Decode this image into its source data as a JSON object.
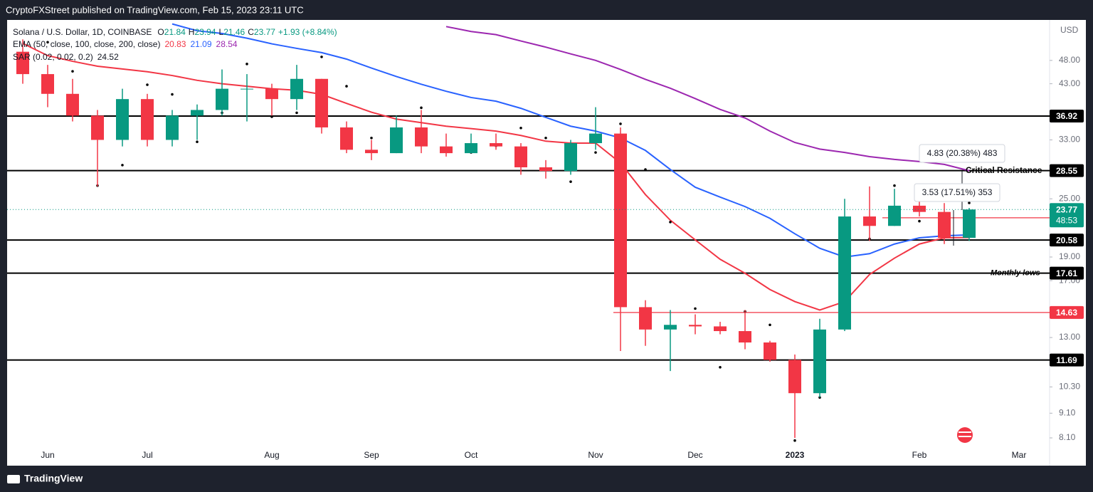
{
  "header": {
    "publisher": "CryptoFXStreet published on TradingView.com, Feb 15, 2023 23:11 UTC"
  },
  "footer": {
    "brand": "TradingView"
  },
  "chart_data": {
    "type": "candlestick",
    "currency": "USD",
    "log_scale": true,
    "grid": false,
    "up_color": "#089981",
    "down_color": "#f23645",
    "legend": {
      "symbol": "Solana / U.S. Dollar, 1D, COINBASE",
      "day": [
        {
          "key": "O",
          "value": "21.84"
        },
        {
          "key": "H",
          "value": "23.94"
        },
        {
          "key": "L",
          "value": "21.46"
        },
        {
          "key": "C",
          "value": "23.77"
        }
      ],
      "change": "+1.93 (+8.84%)",
      "ema": "EMA (50, close, 100, close, 200, close)",
      "sar": "SAR (0.02, 0.02, 0.2)"
    },
    "categories": [
      null,
      "Jun",
      null,
      null,
      null,
      "Jul",
      null,
      null,
      null,
      null,
      "Aug",
      null,
      null,
      null,
      "Sep",
      null,
      null,
      null,
      "Oct",
      null,
      null,
      null,
      null,
      "Nov",
      null,
      null,
      null,
      "Dec",
      null,
      null,
      null,
      "2023",
      null,
      null,
      null,
      null,
      "Feb",
      null,
      null,
      null,
      "Mar"
    ],
    "open": [
      50,
      45,
      41,
      37,
      33,
      40,
      33,
      37,
      38,
      42,
      42,
      40,
      44,
      35,
      31.5,
      31,
      35,
      32,
      31,
      32.5,
      32,
      29,
      28.5,
      32.5,
      34,
      15,
      13.5,
      13.8,
      13.7,
      13.4,
      12.7,
      11.7,
      10,
      13.5,
      23,
      22,
      24.2,
      23.5,
      20.8,
      null,
      null
    ],
    "high": [
      53,
      47,
      44,
      38,
      42,
      41,
      38,
      39,
      46,
      45,
      43,
      47,
      44,
      36,
      33,
      37,
      38,
      34,
      34,
      34,
      32.5,
      30,
      33,
      38.5,
      35,
      15.5,
      14.8,
      14.5,
      14,
      14.8,
      12.8,
      12,
      14.2,
      25,
      26.5,
      26.2,
      25,
      24.5,
      23.94,
      null,
      null
    ],
    "low": [
      43,
      38.5,
      36,
      26.5,
      32,
      32,
      32,
      33,
      37,
      36,
      37,
      38,
      34,
      31,
      30,
      31,
      31,
      30.5,
      31,
      31.5,
      28,
      27.5,
      28,
      31.5,
      12.2,
      12.5,
      11.1,
      13.2,
      13.2,
      12.3,
      11.6,
      8.1,
      9.8,
      13.4,
      20.5,
      22,
      23,
      20.2,
      20.5,
      null,
      null
    ],
    "close": [
      45,
      41,
      37,
      33,
      40,
      33,
      37,
      38,
      42,
      42,
      40,
      44,
      35,
      31.5,
      31,
      35,
      32,
      31,
      32.5,
      32,
      29,
      28.5,
      32.5,
      34,
      15,
      13.5,
      13.8,
      13.7,
      13.4,
      12.7,
      11.7,
      10,
      13.5,
      23,
      22,
      24.2,
      23.5,
      20.8,
      23.77,
      null,
      null
    ],
    "series": [
      {
        "color": "#f23645",
        "values": [
          52,
          49.1,
          47.8,
          46.7,
          46.1,
          45.5,
          44.7,
          43.7,
          43,
          42.5,
          42,
          41.7,
          40.9,
          39.2,
          37.6,
          36.4,
          35.8,
          35.2,
          34.8,
          34.4,
          33.7,
          32.8,
          32.5,
          32.5,
          29.6,
          25.5,
          22.6,
          20.6,
          18.8,
          17.6,
          16.3,
          15.4,
          14.8,
          15.4,
          17.5,
          18.9,
          20.2,
          20.8,
          20.83,
          null,
          null
        ]
      },
      {
        "color": "#2962ff",
        "values": [
          null,
          null,
          null,
          null,
          null,
          null,
          57,
          55.2,
          54.5,
          53.3,
          51.9,
          50.8,
          49.8,
          48.3,
          46.3,
          44.5,
          42.9,
          41.5,
          40.3,
          39.6,
          38.3,
          36.7,
          35.2,
          34.4,
          33.3,
          31.4,
          28.7,
          26.4,
          25.2,
          24.1,
          22.8,
          21.2,
          19.8,
          19,
          19.3,
          20.2,
          20.8,
          21,
          21.09,
          null,
          null
        ]
      },
      {
        "color": "#9c27b0",
        "values": [
          null,
          null,
          null,
          null,
          null,
          null,
          null,
          null,
          null,
          null,
          null,
          null,
          null,
          null,
          null,
          null,
          null,
          56.3,
          55,
          54.2,
          52.6,
          51.1,
          49.5,
          48,
          46,
          43.9,
          42.1,
          40.1,
          38.1,
          36.6,
          34.4,
          32.6,
          31.6,
          31.1,
          30.5,
          30.1,
          29.8,
          29.4,
          28.54,
          null,
          null
        ]
      }
    ],
    "sar": {
      "color": "#000000",
      "values": [
        null,
        52.3,
        45.6,
        26.6,
        29.3,
        42.8,
        40.9,
        32.7,
        37.5,
        47.2,
        36.8,
        37.5,
        48.8,
        42.5,
        33.3,
        31.6,
        38.4,
        31.6,
        31.1,
        32.1,
        34.9,
        33.3,
        27.1,
        31.1,
        35.6,
        28.7,
        22.4,
        14.9,
        11.3,
        14.7,
        13.8,
        8,
        9.8,
        14.4,
        20.7,
        26.6,
        22.5,
        26.6,
        24.52,
        null,
        null
      ]
    },
    "levels": [
      {
        "value": 36.92,
        "color": "#000000"
      },
      {
        "value": 28.55,
        "color": "#000000",
        "note": "Critical Resistance"
      },
      {
        "value": 20.58,
        "color": "#000000"
      },
      {
        "value": 17.61,
        "color": "#000000",
        "note": "Monthly lows"
      },
      {
        "value": 11.69,
        "color": "#000000"
      },
      {
        "value": 14.63,
        "color": "#f23645"
      },
      {
        "value": 22.86,
        "color": "#f23645"
      }
    ],
    "countdown": "48:53",
    "measurements": [
      "4.83 (20.38%) 483",
      "3.53 (17.51%) 353"
    ],
    "ylim": [
      7.13,
      57.7
    ],
    "yticks": [
      {
        "value": 8.1,
        "label": "8.10"
      },
      {
        "value": 9.1,
        "label": "9.10"
      },
      {
        "value": 10.3,
        "label": "10.30"
      },
      {
        "value": 13,
        "label": "13.00"
      },
      {
        "value": 17,
        "label": "17.00"
      },
      {
        "value": 19,
        "label": "19.00"
      },
      {
        "value": 25,
        "label": "25.00"
      },
      {
        "value": 33,
        "label": "33.00"
      },
      {
        "value": 43,
        "label": "43.00"
      },
      {
        "value": 48,
        "label": "48.00"
      }
    ]
  }
}
